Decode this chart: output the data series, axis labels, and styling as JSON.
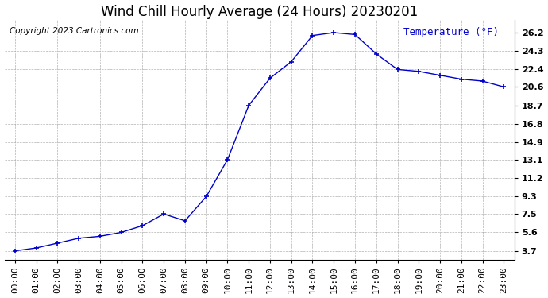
{
  "title": "Wind Chill Hourly Average (24 Hours) 20230201",
  "ylabel": "Temperature (°F)",
  "copyright": "Copyright 2023 Cartronics.com",
  "line_color": "#0000cc",
  "background_color": "#ffffff",
  "plot_background": "#ffffff",
  "grid_color": "#aaaaaa",
  "hours": [
    "00:00",
    "01:00",
    "02:00",
    "03:00",
    "04:00",
    "05:00",
    "06:00",
    "07:00",
    "08:00",
    "09:00",
    "10:00",
    "11:00",
    "12:00",
    "13:00",
    "14:00",
    "15:00",
    "16:00",
    "17:00",
    "18:00",
    "19:00",
    "20:00",
    "21:00",
    "22:00",
    "23:00"
  ],
  "values": [
    3.7,
    4.0,
    4.5,
    5.0,
    5.2,
    5.6,
    6.3,
    7.5,
    6.8,
    9.3,
    13.1,
    18.7,
    21.5,
    23.2,
    25.9,
    26.2,
    26.0,
    24.0,
    22.4,
    22.2,
    21.8,
    21.4,
    21.2,
    20.6
  ],
  "yticks": [
    3.7,
    5.6,
    7.5,
    9.3,
    11.2,
    13.1,
    14.9,
    16.8,
    18.7,
    20.6,
    22.4,
    24.3,
    26.2
  ],
  "ylim": [
    2.8,
    27.5
  ],
  "title_fontsize": 12,
  "label_fontsize": 9,
  "tick_fontsize": 8,
  "copyright_fontsize": 7.5
}
